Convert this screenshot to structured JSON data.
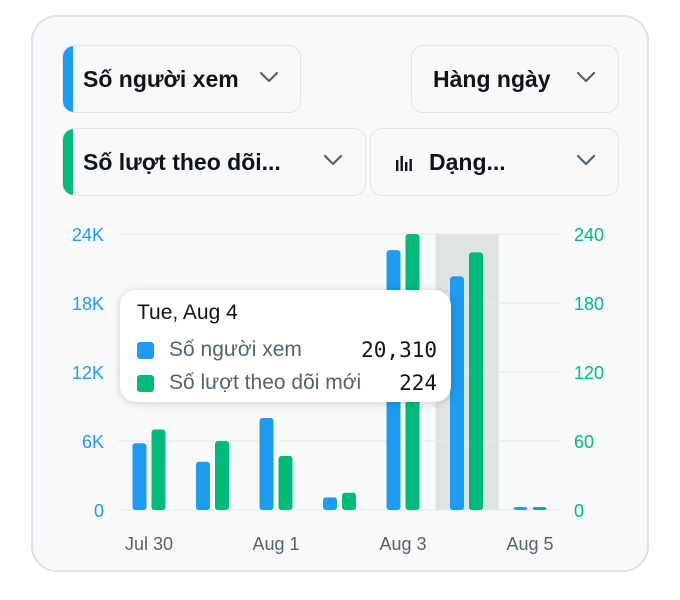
{
  "controls": {
    "metric_primary": {
      "label": "Số người xem",
      "color": "#1d9bf0"
    },
    "period": {
      "label": "Hàng ngày"
    },
    "metric_secondary": {
      "label": "Số lượt theo dõi...",
      "color": "#00ba7c"
    },
    "chart_style": {
      "label": "Dạng...",
      "icon": "bar-chart-icon"
    }
  },
  "tooltip": {
    "date": "Tue, Aug 4",
    "rows": [
      {
        "name": "Số người xem",
        "value": "20,310",
        "color": "#1d9bf0"
      },
      {
        "name": "Số lượt theo dõi mới",
        "value": "224",
        "color": "#00ba7c"
      }
    ]
  },
  "chart_data": {
    "type": "bar",
    "categories": [
      "Jul 30",
      "Jul 31",
      "Aug 1",
      "Aug 2",
      "Aug 3",
      "Aug 4",
      "Aug 5"
    ],
    "x_tick_labels": [
      "Jul 30",
      "Aug 1",
      "Aug 3",
      "Aug 5"
    ],
    "series": [
      {
        "name": "Số người xem",
        "axis": "left",
        "color": "#1d9bf0",
        "values": [
          5800,
          4200,
          8000,
          1100,
          22600,
          20310,
          250
        ]
      },
      {
        "name": "Số lượt theo dõi mới",
        "axis": "right",
        "color": "#00ba7c",
        "values": [
          70,
          60,
          47,
          15,
          240,
          224,
          2
        ]
      }
    ],
    "y_left": {
      "ylim": [
        0,
        24000
      ],
      "ticks": [
        "0",
        "6K",
        "12K",
        "18K",
        "24K"
      ],
      "color": "#1d9bf0"
    },
    "y_right": {
      "ylim": [
        0,
        240
      ],
      "ticks": [
        "0",
        "60",
        "120",
        "180",
        "240"
      ],
      "color": "#00ba7c"
    },
    "highlighted_category": "Aug 4",
    "grid": true
  }
}
